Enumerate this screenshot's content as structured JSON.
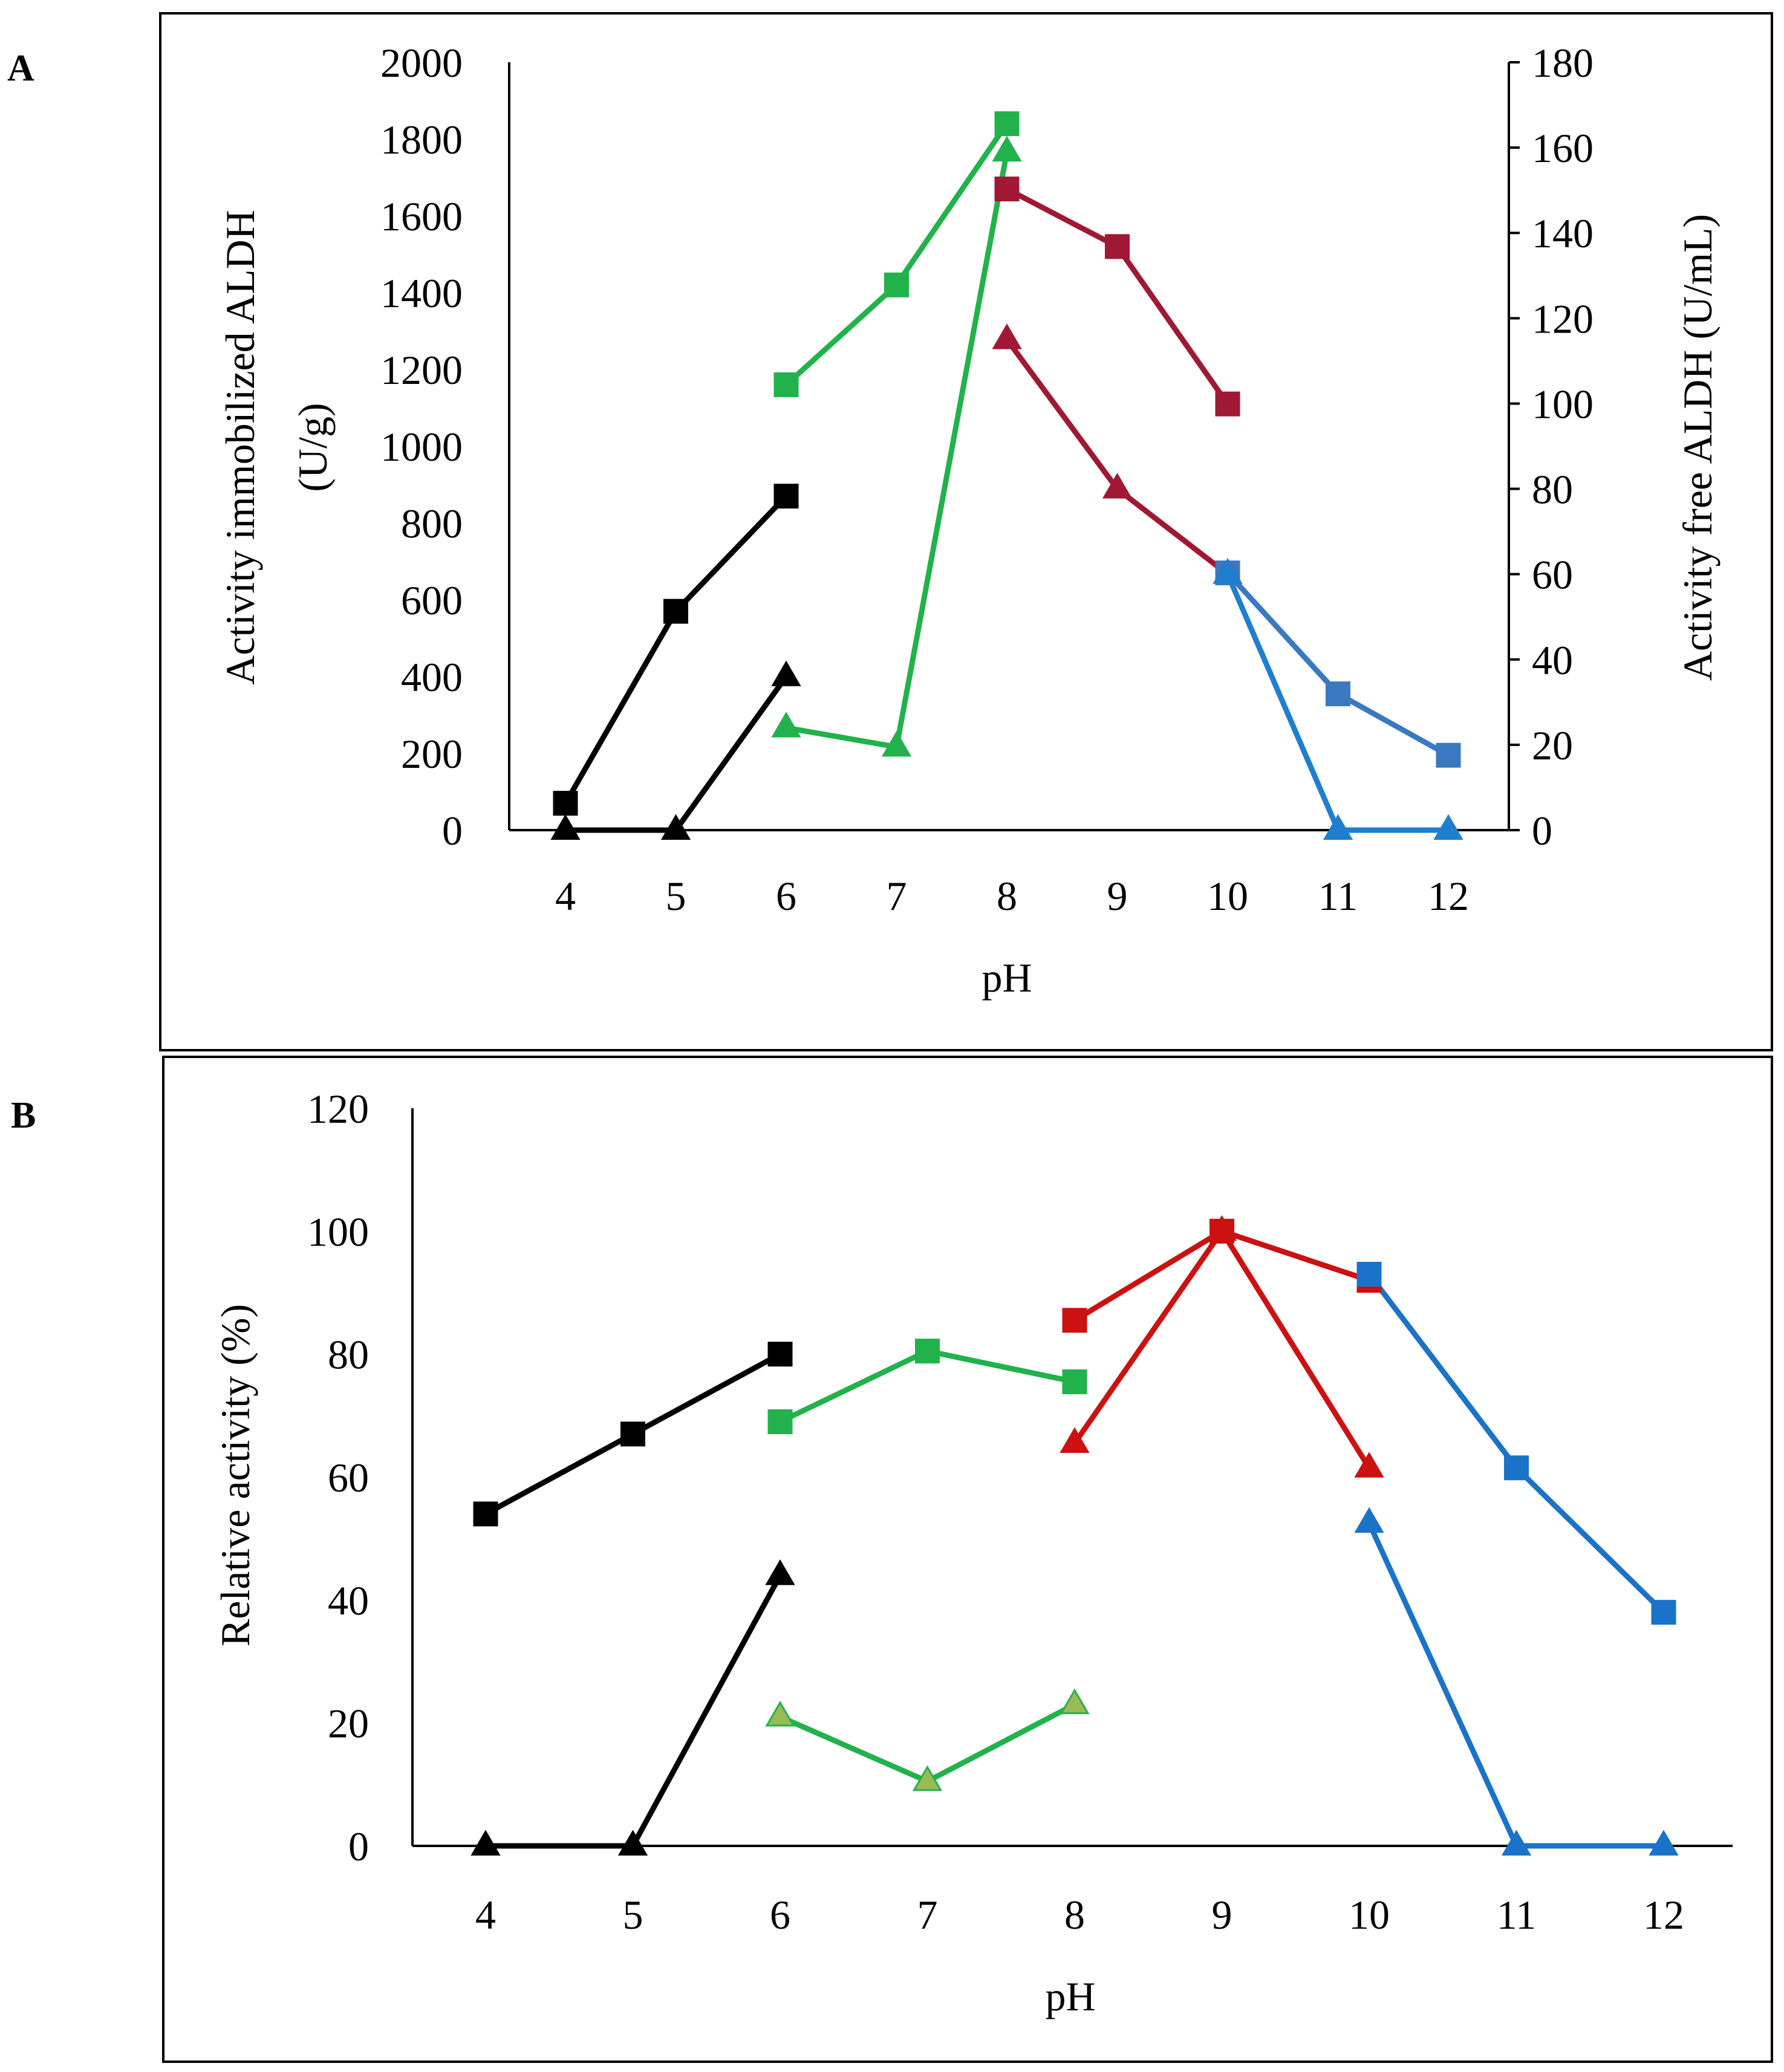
{
  "panels": [
    {
      "label": "A"
    },
    {
      "label": "B"
    }
  ],
  "chart_data": [
    {
      "panel": "A",
      "type": "line",
      "xlabel": "pH",
      "ylabel_left_line1": "Activity  immobilized ALDH",
      "ylabel_left_line2": "(U/g)",
      "ylabel_right": "Activity  free ALDH (U/mL)",
      "categories": [
        4,
        5,
        6,
        7,
        8,
        9,
        10,
        11,
        12
      ],
      "ylim_left": [
        0,
        2000
      ],
      "yticks_left": [
        0,
        200,
        400,
        600,
        800,
        1000,
        1200,
        1400,
        1600,
        1800,
        2000
      ],
      "ylim_right": [
        0,
        180
      ],
      "yticks_right": [
        0,
        20,
        40,
        60,
        80,
        100,
        120,
        140,
        160,
        180
      ],
      "series": [
        {
          "axis": "left",
          "marker": "square",
          "color": "#000000",
          "x": [
            4,
            5,
            6
          ],
          "y": [
            70,
            570,
            870
          ]
        },
        {
          "axis": "left",
          "marker": "square",
          "color": "#22b24c",
          "x": [
            6,
            7,
            8
          ],
          "y": [
            1160,
            1420,
            1840
          ]
        },
        {
          "axis": "left",
          "marker": "square",
          "color": "#a01834",
          "x": [
            8,
            9,
            10
          ],
          "y": [
            1670,
            1520,
            1110
          ]
        },
        {
          "axis": "left",
          "marker": "square",
          "color": "#3a78c2",
          "x": [
            10,
            11,
            12
          ],
          "y": [
            670,
            355,
            195
          ]
        },
        {
          "axis": "right",
          "marker": "triangle",
          "color": "#000000",
          "x": [
            4,
            5,
            6
          ],
          "y": [
            0,
            0,
            36
          ]
        },
        {
          "axis": "right",
          "marker": "triangle",
          "color": "#22b24c",
          "x": [
            6,
            7,
            8
          ],
          "y": [
            24,
            19.5,
            159
          ]
        },
        {
          "axis": "right",
          "marker": "triangle",
          "color": "#a01834",
          "x": [
            8,
            9,
            10
          ],
          "y": [
            115,
            80,
            60
          ]
        },
        {
          "axis": "right",
          "marker": "triangle",
          "color": "#1f7fcf",
          "x": [
            10,
            11,
            12
          ],
          "y": [
            60,
            0,
            0
          ]
        }
      ]
    },
    {
      "panel": "B",
      "type": "line",
      "xlabel": "pH",
      "ylabel": "Relative activity  (%)",
      "categories": [
        4,
        5,
        6,
        7,
        8,
        9,
        10,
        11,
        12
      ],
      "ylim": [
        0,
        120
      ],
      "yticks": [
        0,
        20,
        40,
        60,
        80,
        100,
        120
      ],
      "series": [
        {
          "marker": "square",
          "color": "#000000",
          "x": [
            4,
            5,
            6
          ],
          "y": [
            54,
            67,
            80
          ]
        },
        {
          "marker": "square",
          "color": "#22b24c",
          "x": [
            6,
            7,
            8
          ],
          "y": [
            69,
            80.5,
            75.5
          ]
        },
        {
          "marker": "square",
          "color": "#cc1111",
          "x": [
            8,
            9,
            10
          ],
          "y": [
            85.5,
            100,
            92
          ]
        },
        {
          "marker": "square",
          "color": "#1a73c8",
          "x": [
            10,
            11,
            12
          ],
          "y": [
            93,
            61.5,
            38
          ]
        },
        {
          "marker": "triangle",
          "color": "#000000",
          "x": [
            4,
            5,
            6
          ],
          "y": [
            0,
            0,
            44
          ]
        },
        {
          "marker": "triangle",
          "color": "#22b24c",
          "fill": "#9aba55",
          "x": [
            6,
            7,
            8
          ],
          "y": [
            21,
            10.5,
            23
          ]
        },
        {
          "marker": "triangle",
          "color": "#cc1111",
          "x": [
            8,
            9,
            10
          ],
          "y": [
            65.5,
            100,
            61.5
          ]
        },
        {
          "marker": "triangle",
          "color": "#1a73c8",
          "x": [
            10,
            11,
            12
          ],
          "y": [
            52.5,
            0,
            0
          ]
        }
      ]
    }
  ]
}
